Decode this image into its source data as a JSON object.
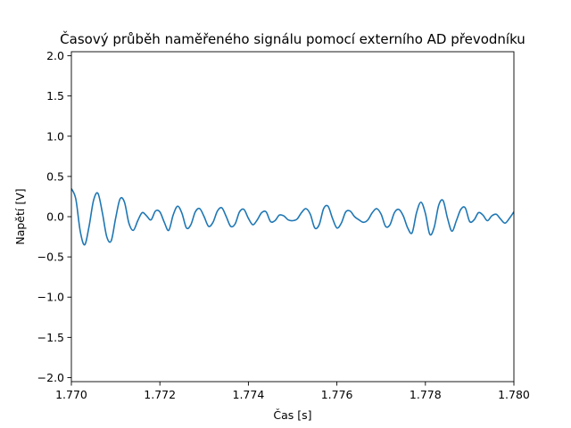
{
  "chart_data": {
    "type": "line",
    "title": "Časový průběh naměřeného signálu pomocí externího AD převodníku",
    "xlabel": "Čas [s]",
    "ylabel": "Napětí [V]",
    "xlim": [
      1.77,
      1.78
    ],
    "ylim": [
      -2.05,
      2.05
    ],
    "grid": false,
    "legend": "none",
    "line_color": "#1f77b4",
    "x_ticks": [
      1.77,
      1.772,
      1.774,
      1.776,
      1.778,
      1.78
    ],
    "x_tick_labels": [
      "1.770",
      "1.772",
      "1.774",
      "1.776",
      "1.778",
      "1.780"
    ],
    "y_ticks": [
      -2.0,
      -1.5,
      -1.0,
      -0.5,
      0.0,
      0.5,
      1.0,
      1.5,
      2.0
    ],
    "y_tick_labels": [
      "−2.0",
      "−1.5",
      "−1.0",
      "−0.5",
      "0.0",
      "0.5",
      "1.0",
      "1.5",
      "2.0"
    ],
    "series": [
      {
        "x": [
          1.77,
          1.7701,
          1.7702,
          1.7703,
          1.7704,
          1.7705,
          1.7706,
          1.7707,
          1.7708,
          1.7709,
          1.771,
          1.7711,
          1.7712,
          1.7713,
          1.7714,
          1.7715,
          1.7716,
          1.7717,
          1.7718,
          1.7719,
          1.772,
          1.7721,
          1.7722,
          1.7723,
          1.7724,
          1.7725,
          1.7726,
          1.7727,
          1.7728,
          1.7729,
          1.773,
          1.7731,
          1.7732,
          1.7733,
          1.7734,
          1.7735,
          1.7736,
          1.7737,
          1.7738,
          1.7739,
          1.774,
          1.7741,
          1.7742,
          1.7743,
          1.7744,
          1.7745,
          1.7746,
          1.7747,
          1.7748,
          1.7749,
          1.775,
          1.7751,
          1.7752,
          1.7753,
          1.7754,
          1.7755,
          1.7756,
          1.7757,
          1.7758,
          1.7759,
          1.776,
          1.7761,
          1.7762,
          1.7763,
          1.7764,
          1.7765,
          1.7766,
          1.7767,
          1.7768,
          1.7769,
          1.777,
          1.7771,
          1.7772,
          1.7773,
          1.7774,
          1.7775,
          1.7776,
          1.7777,
          1.7778,
          1.7779,
          1.778,
          1.7781,
          1.7782,
          1.7783,
          1.7784,
          1.7785,
          1.7786,
          1.7787,
          1.7788,
          1.7789,
          1.779,
          1.7791,
          1.7792,
          1.7793,
          1.7794,
          1.7795,
          1.7796,
          1.7797,
          1.7798,
          1.7799,
          1.78
        ],
        "y": [
          0.35,
          0.22,
          -0.18,
          -0.35,
          -0.12,
          0.2,
          0.29,
          0.05,
          -0.25,
          -0.3,
          -0.02,
          0.22,
          0.18,
          -0.08,
          -0.17,
          -0.05,
          0.05,
          0.01,
          -0.04,
          0.07,
          0.06,
          -0.07,
          -0.17,
          0.02,
          0.13,
          0.04,
          -0.14,
          -0.1,
          0.06,
          0.1,
          0.0,
          -0.12,
          -0.07,
          0.07,
          0.11,
          0.0,
          -0.12,
          -0.09,
          0.06,
          0.09,
          -0.02,
          -0.1,
          -0.04,
          0.05,
          0.06,
          -0.06,
          -0.05,
          0.02,
          0.01,
          -0.04,
          -0.05,
          -0.03,
          0.05,
          0.1,
          0.03,
          -0.14,
          -0.1,
          0.1,
          0.13,
          -0.02,
          -0.14,
          -0.08,
          0.06,
          0.07,
          0.0,
          -0.04,
          -0.07,
          -0.04,
          0.05,
          0.1,
          0.03,
          -0.12,
          -0.1,
          0.05,
          0.09,
          0.01,
          -0.14,
          -0.2,
          0.05,
          0.18,
          0.04,
          -0.22,
          -0.13,
          0.14,
          0.2,
          -0.02,
          -0.18,
          -0.05,
          0.09,
          0.11,
          -0.06,
          -0.04,
          0.05,
          0.02,
          -0.05,
          0.01,
          0.03,
          -0.03,
          -0.08,
          -0.02,
          0.06
        ]
      }
    ]
  }
}
